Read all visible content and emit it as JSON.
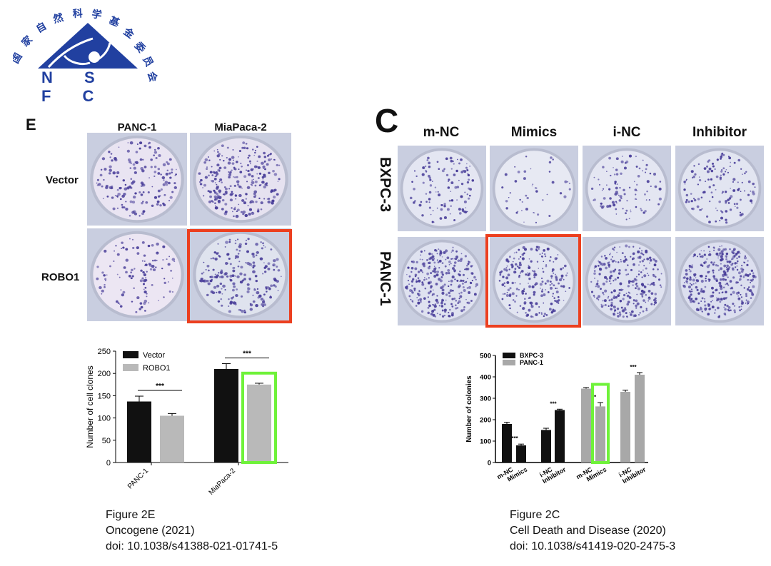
{
  "logo": {
    "letters": "N S F C",
    "arc_text": "国家自然科学基金委员会",
    "brand_color": "#2140a0"
  },
  "figure_e": {
    "panel_letter": "E",
    "columns": [
      "PANC-1",
      "MiaPaca-2"
    ],
    "rows": [
      "Vector",
      "ROBO1"
    ],
    "highlight_color": "#ec3f1f",
    "caption": {
      "line1": "Figure 2E",
      "line2": "Oncogene (2021)",
      "line3": "doi: 10.1038/s41388-021-01741-5"
    }
  },
  "figure_c": {
    "panel_letter": "C",
    "columns": [
      "m-NC",
      "Mimics",
      "i-NC",
      "Inhibitor"
    ],
    "rows": [
      "BXPC-3",
      "PANC-1"
    ],
    "caption": {
      "line1": "Figure 2C",
      "line2": "Cell Death and Disease (2020)",
      "line3": "doi: 10.1038/s41419-020-2475-3"
    }
  },
  "chart_data": [
    {
      "type": "bar",
      "categories": [
        "PANC-1",
        "MiaPaca-2"
      ],
      "series": [
        {
          "name": "Vector",
          "values": [
            137,
            210
          ],
          "errors": [
            12,
            12
          ],
          "color": "#111111"
        },
        {
          "name": "ROBO1",
          "values": [
            105,
            175
          ],
          "errors": [
            5,
            3
          ],
          "color": "#b9b9b9"
        }
      ],
      "significance": [
        "***",
        "***"
      ],
      "ylabel": "Number of cell clones",
      "ylim": [
        0,
        250
      ],
      "yticks": [
        0,
        50,
        100,
        150,
        200,
        250
      ],
      "legend": "top-left",
      "highlight": {
        "category": "MiaPaca-2",
        "series": "ROBO1",
        "color": "#6ff23a"
      }
    },
    {
      "type": "bar",
      "categories": [
        "m-NC",
        "Mimics",
        "i-NC",
        "Inhibitor",
        "m-NC",
        "Mimics",
        "i-NC",
        "Inhibitor"
      ],
      "series": [
        {
          "name": "BXPC-3",
          "values": [
            180,
            80,
            152,
            245,
            null,
            null,
            null,
            null
          ],
          "color": "#111111"
        },
        {
          "name": "PANC-1",
          "values": [
            null,
            null,
            null,
            null,
            345,
            262,
            330,
            410
          ],
          "color": "#a8a8a8"
        }
      ],
      "errors": [
        8,
        6,
        8,
        4,
        5,
        18,
        8,
        10
      ],
      "significance": [
        {
          "label": "***",
          "over": 1
        },
        {
          "label": "***",
          "over": 3
        },
        {
          "label": "**",
          "over": 5
        },
        {
          "label": "***",
          "over": 7
        }
      ],
      "ylabel": "Number of colonies",
      "ylim": [
        0,
        500
      ],
      "yticks": [
        0,
        100,
        200,
        300,
        400,
        500
      ],
      "legend": "top-left",
      "highlight": {
        "category_index": 5,
        "series": "PANC-1",
        "color": "#6ff23a"
      }
    }
  ]
}
